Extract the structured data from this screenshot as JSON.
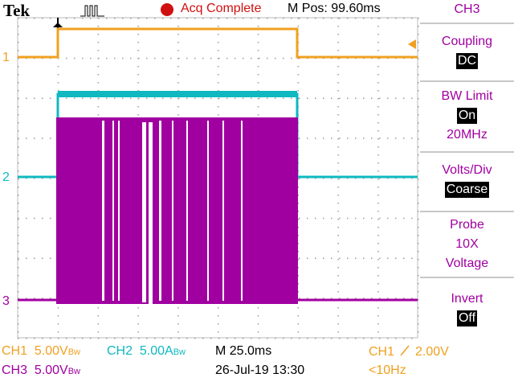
{
  "header": {
    "brand": "Tek",
    "status": "Acq Complete",
    "position": "M Pos: 99.60ms"
  },
  "channel_markers": [
    "1",
    "2",
    "3"
  ],
  "menu": {
    "title": "CH3",
    "items": [
      {
        "label": "Coupling",
        "selected": "DC"
      },
      {
        "label": "BW Limit",
        "selected": "On",
        "lines": [
          "20MHz"
        ]
      },
      {
        "label": "Volts/Div",
        "selected": "Coarse"
      },
      {
        "label": "Probe",
        "lines": [
          "10X",
          "Voltage"
        ]
      },
      {
        "label": "Invert",
        "selected": "Off"
      }
    ]
  },
  "footer": {
    "ch1": {
      "name": "CH1",
      "scale": "5.00V",
      "suffix": "Bw"
    },
    "ch2": {
      "name": "CH2",
      "scale": "5.00A",
      "suffix": "Bw"
    },
    "ch3": {
      "name": "CH3",
      "scale": "5.00V",
      "suffix": "Bw"
    },
    "timebase": "M 25.0ms",
    "date": "26-Jul-19 13:30",
    "trigger": {
      "source": "CH1",
      "level": "2.00V"
    },
    "frequency": "<10Hz"
  }
}
